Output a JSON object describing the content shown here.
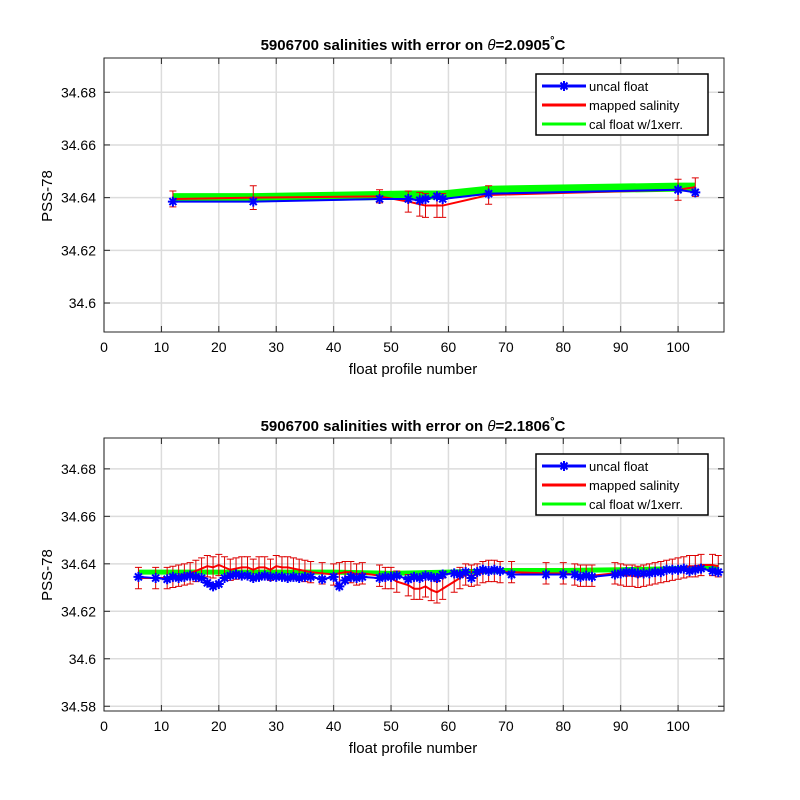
{
  "chart_data": [
    {
      "type": "line",
      "title_prefix": "5906700 salinities with error on ",
      "title_theta": "θ",
      "title_value": "=2.0905",
      "title_deg": "°",
      "title_unit": "C",
      "xlabel": "float profile number",
      "ylabel": "PSS-78",
      "xlim": [
        0,
        108
      ],
      "ylim": [
        34.589,
        34.693
      ],
      "xticks": [
        0,
        10,
        20,
        30,
        40,
        50,
        60,
        70,
        80,
        90,
        100
      ],
      "yticks": [
        34.6,
        34.62,
        34.64,
        34.66,
        34.68
      ],
      "ytick_labels": [
        "34.6",
        "34.62",
        "34.64",
        "34.66",
        "34.68"
      ],
      "grid": true,
      "legend_position": "top-right",
      "legend": [
        "uncal float",
        "mapped salinity",
        "cal float w/1xerr."
      ],
      "series": [
        {
          "name": "uncal float",
          "x": [
            12,
            26,
            48,
            53,
            55,
            56,
            58,
            59,
            67,
            100,
            103
          ],
          "y": [
            34.6385,
            34.6385,
            34.6395,
            34.6395,
            34.639,
            34.6395,
            34.6405,
            34.6395,
            34.6415,
            34.643,
            34.642
          ]
        },
        {
          "name": "mapped salinity",
          "x": [
            12,
            26,
            48,
            53,
            55,
            56,
            58,
            59,
            67,
            100,
            103
          ],
          "y": [
            34.6395,
            34.64,
            34.6405,
            34.6385,
            34.6375,
            34.637,
            34.637,
            34.637,
            34.641,
            34.643,
            34.644
          ],
          "err": [
            0.003,
            0.0045,
            0.0025,
            0.004,
            0.0045,
            0.0045,
            0.0045,
            0.0045,
            0.0035,
            0.004,
            0.0035
          ]
        },
        {
          "name": "cal float w/1xerr.",
          "x": [
            12,
            26,
            48,
            53,
            55,
            56,
            58,
            59,
            67,
            100,
            103
          ],
          "y": [
            34.64,
            34.64,
            34.6408,
            34.641,
            34.641,
            34.641,
            34.641,
            34.641,
            34.6428,
            34.644,
            34.644
          ]
        }
      ]
    },
    {
      "type": "line",
      "title_prefix": "5906700 salinities with error on ",
      "title_theta": "θ",
      "title_value": "=2.1806",
      "title_deg": "°",
      "title_unit": "C",
      "xlabel": "float profile number",
      "ylabel": "PSS-78",
      "xlim": [
        0,
        108
      ],
      "ylim": [
        34.578,
        34.693
      ],
      "xticks": [
        0,
        10,
        20,
        30,
        40,
        50,
        60,
        70,
        80,
        90,
        100
      ],
      "yticks": [
        34.58,
        34.6,
        34.62,
        34.64,
        34.66,
        34.68
      ],
      "ytick_labels": [
        "34.58",
        "34.6",
        "34.62",
        "34.64",
        "34.66",
        "34.68"
      ],
      "grid": true,
      "legend_position": "top-right",
      "legend": [
        "uncal float",
        "mapped salinity",
        "cal float w/1xerr."
      ],
      "series": [
        {
          "name": "uncal float",
          "x": [
            6,
            9,
            11,
            12,
            13,
            14,
            15,
            16,
            17,
            18,
            19,
            20,
            21,
            22,
            23,
            24,
            25,
            26,
            27,
            28,
            29,
            30,
            31,
            32,
            33,
            34,
            35,
            36,
            38,
            40,
            41,
            42,
            43,
            44,
            45,
            48,
            49,
            50,
            51,
            53,
            54,
            55,
            56,
            57,
            58,
            59,
            61,
            62,
            63,
            64,
            65,
            66,
            67,
            68,
            69,
            71,
            77,
            80,
            82,
            83,
            84,
            85,
            89,
            90,
            91,
            92,
            93,
            94,
            95,
            96,
            97,
            98,
            99,
            100,
            101,
            102,
            103,
            104,
            106,
            107
          ],
          "y": [
            34.6345,
            34.634,
            34.6335,
            34.6345,
            34.634,
            34.6345,
            34.635,
            34.6345,
            34.634,
            34.632,
            34.6305,
            34.6315,
            34.634,
            34.635,
            34.6355,
            34.635,
            34.635,
            34.634,
            34.6345,
            34.635,
            34.6345,
            34.6345,
            34.6345,
            34.634,
            34.6345,
            34.634,
            34.6345,
            34.6345,
            34.6335,
            34.6345,
            34.6305,
            34.633,
            34.6345,
            34.634,
            34.6345,
            34.634,
            34.6345,
            34.6345,
            34.635,
            34.6335,
            34.6345,
            34.634,
            34.635,
            34.6345,
            34.634,
            34.6355,
            34.636,
            34.6355,
            34.6365,
            34.634,
            34.6365,
            34.6375,
            34.637,
            34.6375,
            34.637,
            34.6355,
            34.6355,
            34.6355,
            34.6355,
            34.6345,
            34.635,
            34.6345,
            34.6355,
            34.636,
            34.6365,
            34.6365,
            34.636,
            34.636,
            34.636,
            34.6365,
            34.6365,
            34.6375,
            34.6375,
            34.6375,
            34.638,
            34.637,
            34.6375,
            34.638,
            34.637,
            34.6365
          ]
        },
        {
          "name": "mapped salinity",
          "x": [
            6,
            9,
            11,
            12,
            13,
            14,
            15,
            16,
            17,
            18,
            19,
            20,
            21,
            22,
            23,
            24,
            25,
            26,
            27,
            28,
            29,
            30,
            31,
            32,
            33,
            34,
            35,
            36,
            38,
            40,
            41,
            42,
            43,
            44,
            45,
            48,
            49,
            50,
            51,
            53,
            54,
            55,
            56,
            57,
            58,
            59,
            61,
            62,
            63,
            64,
            65,
            66,
            67,
            68,
            69,
            71,
            77,
            80,
            82,
            83,
            84,
            85,
            89,
            90,
            91,
            92,
            93,
            94,
            95,
            96,
            97,
            98,
            99,
            100,
            101,
            102,
            103,
            104,
            106,
            107
          ],
          "y": [
            34.634,
            34.634,
            34.634,
            34.6345,
            34.635,
            34.6355,
            34.636,
            34.637,
            34.638,
            34.639,
            34.6385,
            34.6395,
            34.6385,
            34.6375,
            34.638,
            34.6385,
            34.6385,
            34.6375,
            34.6385,
            34.6385,
            34.6375,
            34.639,
            34.6385,
            34.6385,
            34.638,
            34.6375,
            34.637,
            34.6365,
            34.636,
            34.6355,
            34.636,
            34.6365,
            34.6365,
            34.6355,
            34.636,
            34.635,
            34.634,
            34.634,
            34.6325,
            34.631,
            34.6295,
            34.6295,
            34.6305,
            34.629,
            34.628,
            34.6295,
            34.6325,
            34.634,
            34.6355,
            34.635,
            34.6355,
            34.6365,
            34.637,
            34.637,
            34.6365,
            34.6365,
            34.636,
            34.636,
            34.6355,
            34.635,
            34.635,
            34.635,
            34.636,
            34.6355,
            34.635,
            34.635,
            34.6345,
            34.635,
            34.6355,
            34.636,
            34.6365,
            34.637,
            34.6375,
            34.638,
            34.6385,
            34.639,
            34.639,
            34.6395,
            34.6395,
            34.639
          ],
          "err": 0.0045
        },
        {
          "name": "cal float w/1xerr.",
          "x": [
            6,
            20,
            30,
            40,
            50,
            60,
            70,
            80,
            90,
            100,
            107
          ],
          "y": [
            34.6365,
            34.6365,
            34.6365,
            34.6365,
            34.636,
            34.6365,
            34.6372,
            34.6372,
            34.6375,
            34.638,
            34.6385
          ]
        }
      ]
    }
  ],
  "colors": {
    "uncal": "#0000ff",
    "mapped": "#ff0000",
    "errbar": "#dd0000",
    "cal": "#00ff00",
    "grid": "#dcdcdc",
    "axis": "#262626"
  }
}
